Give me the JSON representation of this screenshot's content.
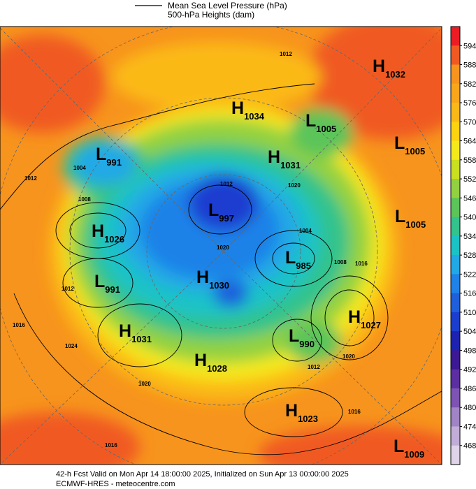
{
  "legend": {
    "line1": "Mean Sea Level Pressure (hPa)",
    "line2": "500-hPa Heights (dam)"
  },
  "colorbar": {
    "labels": [
      594,
      588,
      582,
      576,
      570,
      564,
      558,
      552,
      546,
      540,
      534,
      528,
      522,
      516,
      510,
      504,
      498,
      492,
      486,
      480,
      474,
      468
    ],
    "colors": [
      "#ed1c24",
      "#f05a22",
      "#f7941d",
      "#faa61a",
      "#fbb917",
      "#fdd20f",
      "#f6e91b",
      "#c9df1f",
      "#93d140",
      "#5cc55a",
      "#33c38c",
      "#1ac3c6",
      "#21a9e6",
      "#1f82e8",
      "#1e5fdc",
      "#1b3ed0",
      "#1d23b0",
      "#3c1894",
      "#5c2ea2",
      "#7e53b4",
      "#a084c6",
      "#c2acd8",
      "#dfd3ea"
    ]
  },
  "centers": [
    {
      "letter": "H",
      "value": 1032
    },
    {
      "letter": "H",
      "value": 1034
    },
    {
      "letter": "L",
      "value": 1005
    },
    {
      "letter": "L",
      "value": 1005
    },
    {
      "letter": "L",
      "value": 991
    },
    {
      "letter": "H",
      "value": 1031
    },
    {
      "letter": "L",
      "value": 997
    },
    {
      "letter": "L",
      "value": 1005
    },
    {
      "letter": "H",
      "value": 1026
    },
    {
      "letter": "L",
      "value": 985
    },
    {
      "letter": "L",
      "value": 991
    },
    {
      "letter": "H",
      "value": 1030
    },
    {
      "letter": "H",
      "value": 1027
    },
    {
      "letter": "H",
      "value": 1031
    },
    {
      "letter": "L",
      "value": 990
    },
    {
      "letter": "H",
      "value": 1028
    },
    {
      "letter": "H",
      "value": 1023
    },
    {
      "letter": "L",
      "value": 1009
    }
  ],
  "isobar_labels": [
    "1012",
    "1004",
    "1012",
    "1008",
    "1012",
    "1020",
    "1004",
    "1008",
    "1016",
    "1020",
    "1012",
    "1016",
    "1024",
    "1020",
    "1012",
    "1020",
    "1016",
    "1016"
  ],
  "footer": {
    "line1": "42-h Fcst Valid on Mon Apr 14 18:00:00 2025, Initialized on Sun Apr 13 00:00:00 2025",
    "line2": "ECMWF-HRES  - meteocentre.com"
  }
}
